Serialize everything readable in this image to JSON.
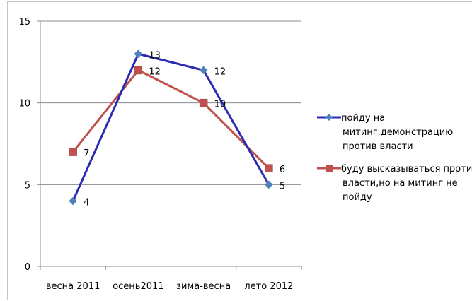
{
  "chart_data": {
    "type": "line",
    "categories": [
      "весна 2011",
      "осень2011",
      "зима-весна",
      "лето 2012"
    ],
    "ylim": [
      0,
      15
    ],
    "yticks": [
      0,
      5,
      10,
      15
    ],
    "grid": true,
    "legend_position": "right",
    "series": [
      {
        "name": "пойду на митинг,демонстрацию против власти",
        "legend_lines": [
          "пойду на",
          "митинг,демонстрацию",
          "против власти"
        ],
        "values": [
          4,
          13,
          12,
          5
        ],
        "line_color": "#2a2ab4",
        "marker_color": "#4f81bd",
        "marker": "diamond"
      },
      {
        "name": "буду высказываться против власти,но на митинг не пойду",
        "legend_lines": [
          "буду высказываться против",
          "власти,но на митинг не",
          "пойду"
        ],
        "values": [
          7,
          12,
          10,
          6
        ],
        "line_color": "#c0504d",
        "marker_color": "#c0504d",
        "marker": "square"
      }
    ]
  }
}
